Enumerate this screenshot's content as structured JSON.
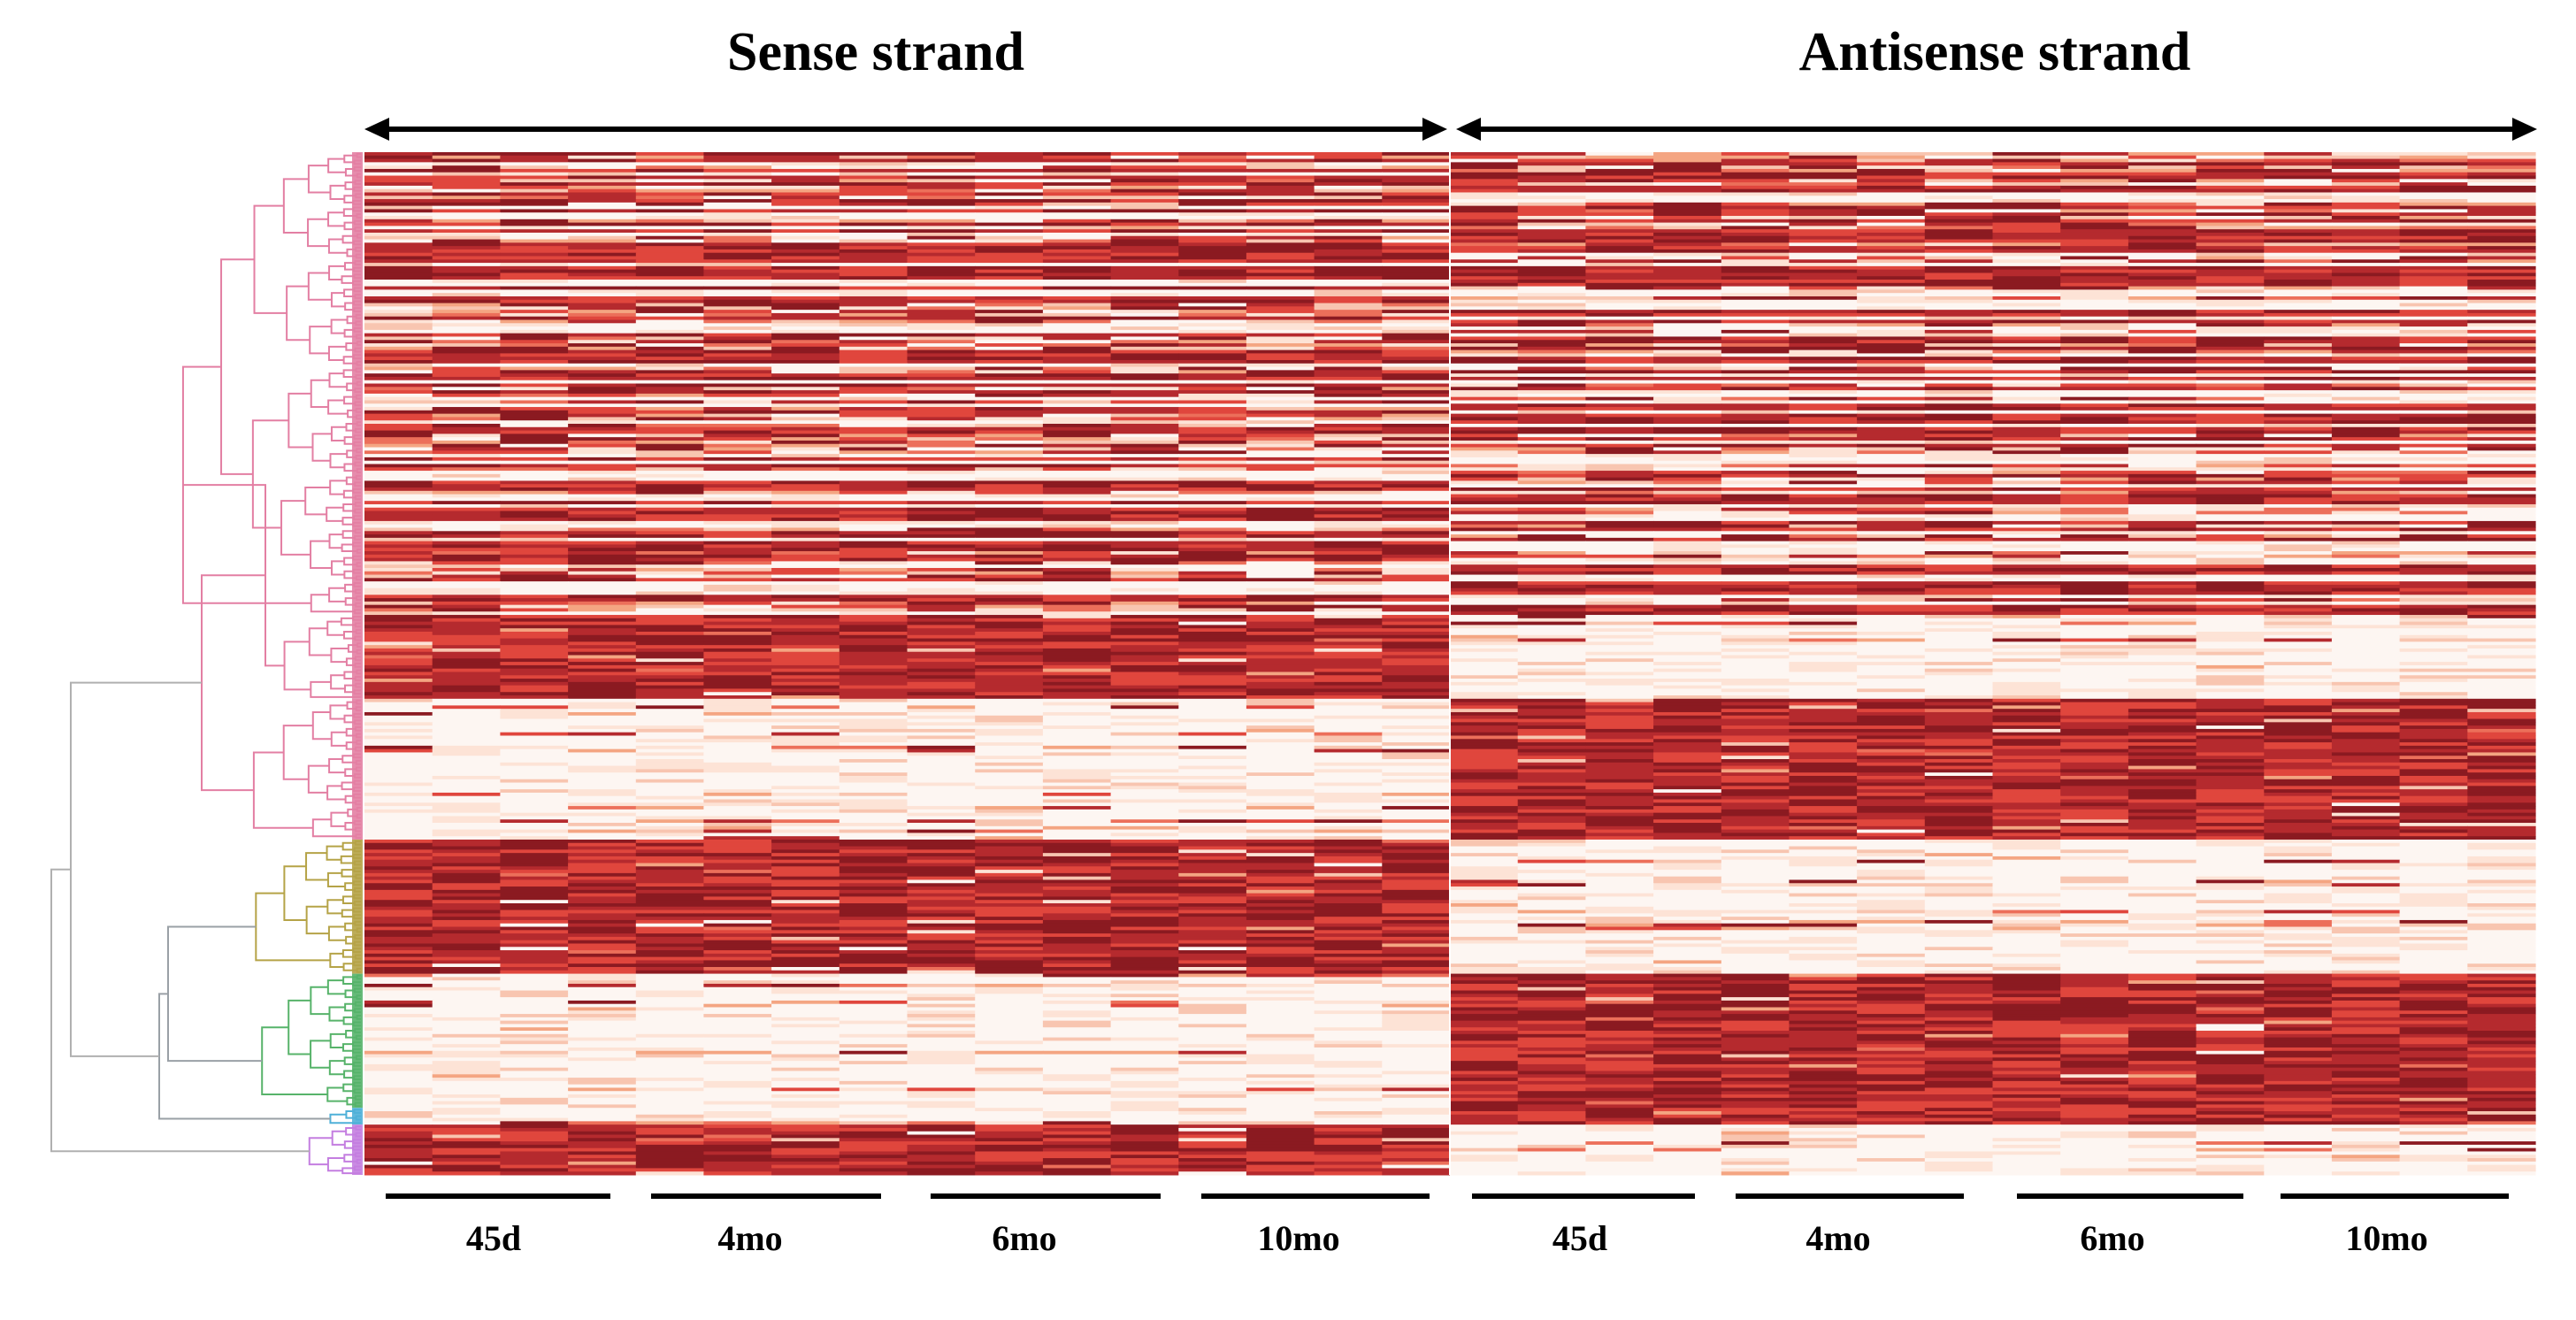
{
  "chart_data": {
    "type": "heatmap",
    "title": "",
    "panels": [
      {
        "name": "Sense strand",
        "group_labels": [
          "45d",
          "4mo",
          "6mo",
          "10mo"
        ],
        "replicates_per_group": 4
      },
      {
        "name": "Antisense strand",
        "group_labels": [
          "45d",
          "4mo",
          "6mo",
          "10mo"
        ],
        "replicates_per_group": 4
      }
    ],
    "xlabel": "",
    "ylabel": "",
    "color_scale": {
      "low": "#fdf6f2",
      "mid_low": "#f8c5b0",
      "mid": "#f4a582",
      "mid_high": "#e0463d",
      "high": "#8b1a21"
    },
    "row_clusters": [
      {
        "id": "cluster-1",
        "color": "#e37fa3",
        "rows": 138,
        "sense_level": "mixed",
        "antisense_level": "mixed"
      },
      {
        "id": "cluster-2",
        "color": "#e37fa3",
        "rows": 25,
        "sense_level": "high",
        "antisense_level": "low"
      },
      {
        "id": "cluster-3",
        "color": "#e37fa3",
        "rows": 42,
        "sense_level": "low",
        "antisense_level": "high"
      },
      {
        "id": "cluster-4",
        "color": "#b5a347",
        "rows": 40,
        "sense_level": "high",
        "antisense_level": "low"
      },
      {
        "id": "cluster-5",
        "color": "#57b36a",
        "rows": 40,
        "sense_level": "low",
        "antisense_level": "high"
      },
      {
        "id": "cluster-6",
        "color": "#4fb0d8",
        "rows": 5,
        "sense_level": "low",
        "antisense_level": "high"
      },
      {
        "id": "cluster-7",
        "color": "#c47ee0",
        "rows": 15,
        "sense_level": "high",
        "antisense_level": "low"
      }
    ],
    "legend": "none"
  }
}
